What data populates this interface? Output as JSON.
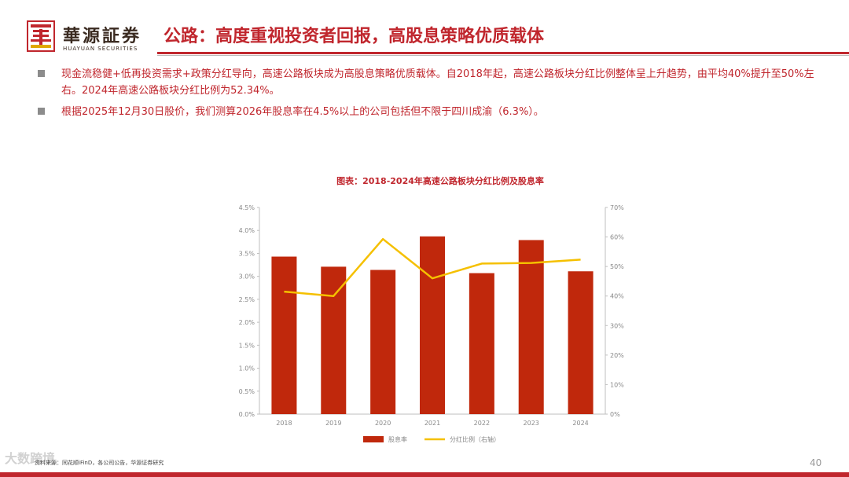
{
  "header": {
    "logo_cn": "華源証券",
    "logo_en": "HUAYUAN SECURITIES",
    "title": "公路：高度重视投资者回报，高股息策略优质载体"
  },
  "bullets": [
    "现金流稳健+低再投资需求+政策分红导向，高速公路板块成为高股息策略优质载体。自2018年起，高速公路板块分红比例整体呈上升趋势，由平均40%提升至50%左右。2024年高速公路板块分红比例为52.34%。",
    "根据2025年12月30日股价，我们测算2026年股息率在4.5%以上的公司包括但不限于四川成渝（6.3%）。"
  ],
  "chart_data": {
    "type": "bar",
    "title": "图表：2018-2024年高速公路板块分红比例及股息率",
    "categories": [
      "2018",
      "2019",
      "2020",
      "2021",
      "2022",
      "2023",
      "2024"
    ],
    "series": [
      {
        "name": "股息率",
        "type": "bar",
        "axis": "left",
        "color": "#c0280c",
        "values": [
          3.43,
          3.21,
          3.14,
          3.87,
          3.07,
          3.79,
          3.11
        ]
      },
      {
        "name": "分红比例（右轴）",
        "type": "line",
        "axis": "right",
        "color": "#f5c000",
        "values": [
          41.5,
          40.0,
          59.3,
          46.0,
          51.0,
          51.2,
          52.34
        ]
      }
    ],
    "y_left": {
      "min": 0,
      "max": 4.5,
      "step": 0.5,
      "ticks": [
        "0.0%",
        "0.5%",
        "1.0%",
        "1.5%",
        "2.0%",
        "2.5%",
        "3.0%",
        "3.5%",
        "4.0%",
        "4.5%"
      ]
    },
    "y_right": {
      "min": 0,
      "max": 70,
      "step": 10,
      "ticks": [
        "0%",
        "10%",
        "20%",
        "30%",
        "40%",
        "50%",
        "60%",
        "70%"
      ]
    },
    "legend_position": "bottom",
    "grid": false
  },
  "footer": {
    "source": "资料来源：同花顺iFinD，各公司公告，华源证券研究",
    "watermark": "大数跨境",
    "page": "40"
  }
}
